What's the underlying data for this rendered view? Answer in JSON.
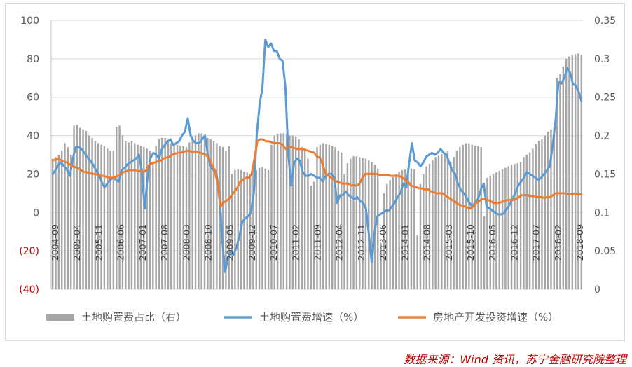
{
  "source_note": "数据来源：Wind 资讯，苏宁金融研究院整理",
  "chart_data": {
    "type": "bar-line-combo",
    "grid": "horizontal",
    "legend_position": "bottom",
    "x_axis": {
      "tick_labels": [
        "2004-09",
        "2005-04",
        "2005-11",
        "2006-06",
        "2007-01",
        "2007-08",
        "2008-03",
        "2008-10",
        "2009-05",
        "2009-12",
        "2010-07",
        "2011-02",
        "2011-09",
        "2012-04",
        "2012-11",
        "2013-06",
        "2014-01",
        "2014-08",
        "2015-03",
        "2015-10",
        "2016-05",
        "2016-12",
        "2017-07",
        "2018-02",
        "2018-09"
      ]
    },
    "y_axis_left": {
      "min": -40,
      "max": 100,
      "step": 20,
      "tick_labels": [
        "(40)",
        "(20)",
        "0",
        "20",
        "40",
        "60",
        "80",
        "100"
      ]
    },
    "y_axis_right": {
      "min": 0,
      "max": 0.35,
      "step": 0.05,
      "tick_labels": [
        "0",
        "0.05",
        "0.1",
        "0.15",
        "0.2",
        "0.25",
        "0.3",
        "0.35"
      ]
    },
    "series": [
      {
        "name": "土地购置费占比（右）",
        "kind": "bar",
        "axis": "right",
        "color": "#a6a6a6",
        "values": [
          0.17,
          0.172,
          0.175,
          0.18,
          0.19,
          0.185,
          0.175,
          0.213,
          0.214,
          0.21,
          0.208,
          0.206,
          0.2,
          0.197,
          0.193,
          0.19,
          0.188,
          0.186,
          0.183,
          0.18,
          0.18,
          0.211,
          0.213,
          0.2,
          0.193,
          0.191,
          0.193,
          0.19,
          0.188,
          0.187,
          0.185,
          0.183,
          0.18,
          0.166,
          0.187,
          0.195,
          0.197,
          0.197,
          0.192,
          0.19,
          0.189,
          0.188,
          0.187,
          0.186,
          0.185,
          0.191,
          0.199,
          0.2,
          0.203,
          0.203,
          0.198,
          0.197,
          0.195,
          0.193,
          0.19,
          0.187,
          0.185,
          0.18,
          0.186,
          0.15,
          0.155,
          0.156,
          0.155,
          0.153,
          0.152,
          0.15,
          0.155,
          0.155,
          0.158,
          0.159,
          0.157,
          0.155,
          0.188,
          0.2,
          0.202,
          0.203,
          0.203,
          0.202,
          0.2,
          0.2,
          0.199,
          0.195,
          0.185,
          0.183,
          0.17,
          0.135,
          0.14,
          0.185,
          0.188,
          0.19,
          0.189,
          0.188,
          0.187,
          0.185,
          0.18,
          0.178,
          0.15,
          0.164,
          0.17,
          0.173,
          0.173,
          0.172,
          0.171,
          0.17,
          0.168,
          0.165,
          0.162,
          0.157,
          0.06,
          0.125,
          0.137,
          0.142,
          0.146,
          0.15,
          0.153,
          0.155,
          0.156,
          0.157,
          0.157,
          0.156,
          0.07,
          0.137,
          0.15,
          0.16,
          0.163,
          0.168,
          0.172,
          0.174,
          0.176,
          0.178,
          0.18,
          0.165,
          0.172,
          0.18,
          0.185,
          0.188,
          0.19,
          0.19,
          0.188,
          0.187,
          0.186,
          0.185,
          0.095,
          0.145,
          0.148,
          0.15,
          0.152,
          0.154,
          0.156,
          0.158,
          0.16,
          0.162,
          0.163,
          0.164,
          0.165,
          0.172,
          0.175,
          0.178,
          0.183,
          0.189,
          0.193,
          0.195,
          0.2,
          0.205,
          0.208,
          0.21,
          0.275,
          0.28,
          0.29,
          0.3,
          0.303,
          0.305,
          0.306,
          0.307,
          0.305
        ]
      },
      {
        "name": "土地购置费增速（%）",
        "kind": "line",
        "axis": "left",
        "color": "#5b9bd5",
        "values": [
          20,
          22,
          25,
          26,
          24,
          22,
          19,
          28,
          34,
          34,
          33,
          31,
          29,
          27,
          25,
          22,
          20,
          16,
          13,
          15,
          17,
          18,
          17,
          16,
          22,
          23,
          25,
          26,
          27,
          28,
          30,
          22,
          2,
          18,
          28,
          31,
          30,
          28,
          33,
          35,
          37,
          38,
          35,
          36,
          37,
          40,
          42,
          49,
          40,
          37,
          36,
          36,
          38,
          40,
          30,
          24,
          22,
          20,
          10,
          -14,
          -31,
          -24,
          -20,
          -22,
          -18,
          -12,
          -5,
          -3,
          -2,
          0,
          10,
          40,
          56,
          65,
          90,
          86,
          88,
          84,
          84,
          80,
          79,
          65,
          30,
          14,
          26,
          28,
          27,
          21,
          19,
          19,
          20,
          19,
          18,
          18,
          16,
          19,
          20,
          20,
          18,
          5,
          9,
          9,
          11,
          9,
          8,
          7,
          8,
          6,
          5,
          2,
          -11,
          -26,
          -10,
          -2,
          -1,
          0,
          1,
          1,
          3,
          5,
          8,
          10,
          15,
          13,
          25,
          36,
          27,
          26,
          24,
          26,
          29,
          30,
          31,
          30,
          31,
          33,
          31,
          30,
          26,
          22,
          20,
          15,
          12,
          10,
          8,
          5,
          3,
          5,
          7,
          12,
          15,
          3,
          2,
          1,
          0,
          -1,
          -1,
          -0.5,
          2,
          4,
          7,
          10,
          14,
          16,
          18,
          21,
          20,
          19,
          18,
          17,
          18,
          20,
          22,
          24,
          35,
          48,
          68,
          67,
          70,
          75,
          73,
          67,
          66,
          63,
          58
        ]
      },
      {
        "name": "房地产开发投资增速（%）",
        "kind": "line",
        "axis": "left",
        "color": "#ed7d31",
        "values": [
          27,
          27.5,
          28,
          27,
          26.5,
          26,
          25,
          24,
          23.5,
          23,
          22,
          21,
          21,
          20.5,
          20,
          20,
          19.5,
          19,
          19,
          18.5,
          18,
          18,
          18.5,
          19,
          20,
          21,
          21.5,
          22,
          22,
          22,
          21.5,
          21.5,
          21,
          22,
          25,
          25.5,
          26,
          26.5,
          27,
          28,
          28.5,
          29,
          30,
          30.5,
          31,
          31,
          31.5,
          32,
          32,
          31.5,
          31.5,
          31.5,
          31,
          30.5,
          30,
          28,
          25,
          22,
          15,
          3,
          5,
          6,
          7,
          9,
          11,
          13,
          16,
          17,
          18,
          18,
          20,
          28,
          37,
          38,
          38,
          37,
          37,
          36.5,
          36,
          36,
          36,
          35,
          33,
          34,
          34,
          33.5,
          33,
          33,
          33,
          32.5,
          32,
          31.5,
          31,
          29,
          28.5,
          25,
          20,
          19,
          18,
          17,
          16,
          15.5,
          15,
          15,
          15,
          14,
          14,
          14,
          15,
          18,
          20,
          20,
          20,
          20,
          20,
          19.5,
          19.5,
          19.5,
          19.5,
          19,
          19,
          19,
          19,
          18,
          17,
          16,
          14,
          13.5,
          13,
          12.5,
          12.5,
          12,
          12,
          11,
          10.5,
          10,
          10,
          10,
          9,
          8,
          7,
          6,
          5,
          4,
          3.5,
          3,
          2.5,
          2,
          3,
          5,
          6,
          7,
          7,
          6.5,
          6,
          5,
          5,
          5,
          5.5,
          6,
          6.5,
          6.5,
          6.5,
          7,
          8,
          9,
          9,
          9,
          8.5,
          8.5,
          8,
          8,
          8,
          7.5,
          8,
          8,
          9,
          10,
          10,
          10,
          10,
          9.8,
          9.7,
          9.7,
          9.6,
          9.5,
          9.5
        ]
      }
    ]
  }
}
